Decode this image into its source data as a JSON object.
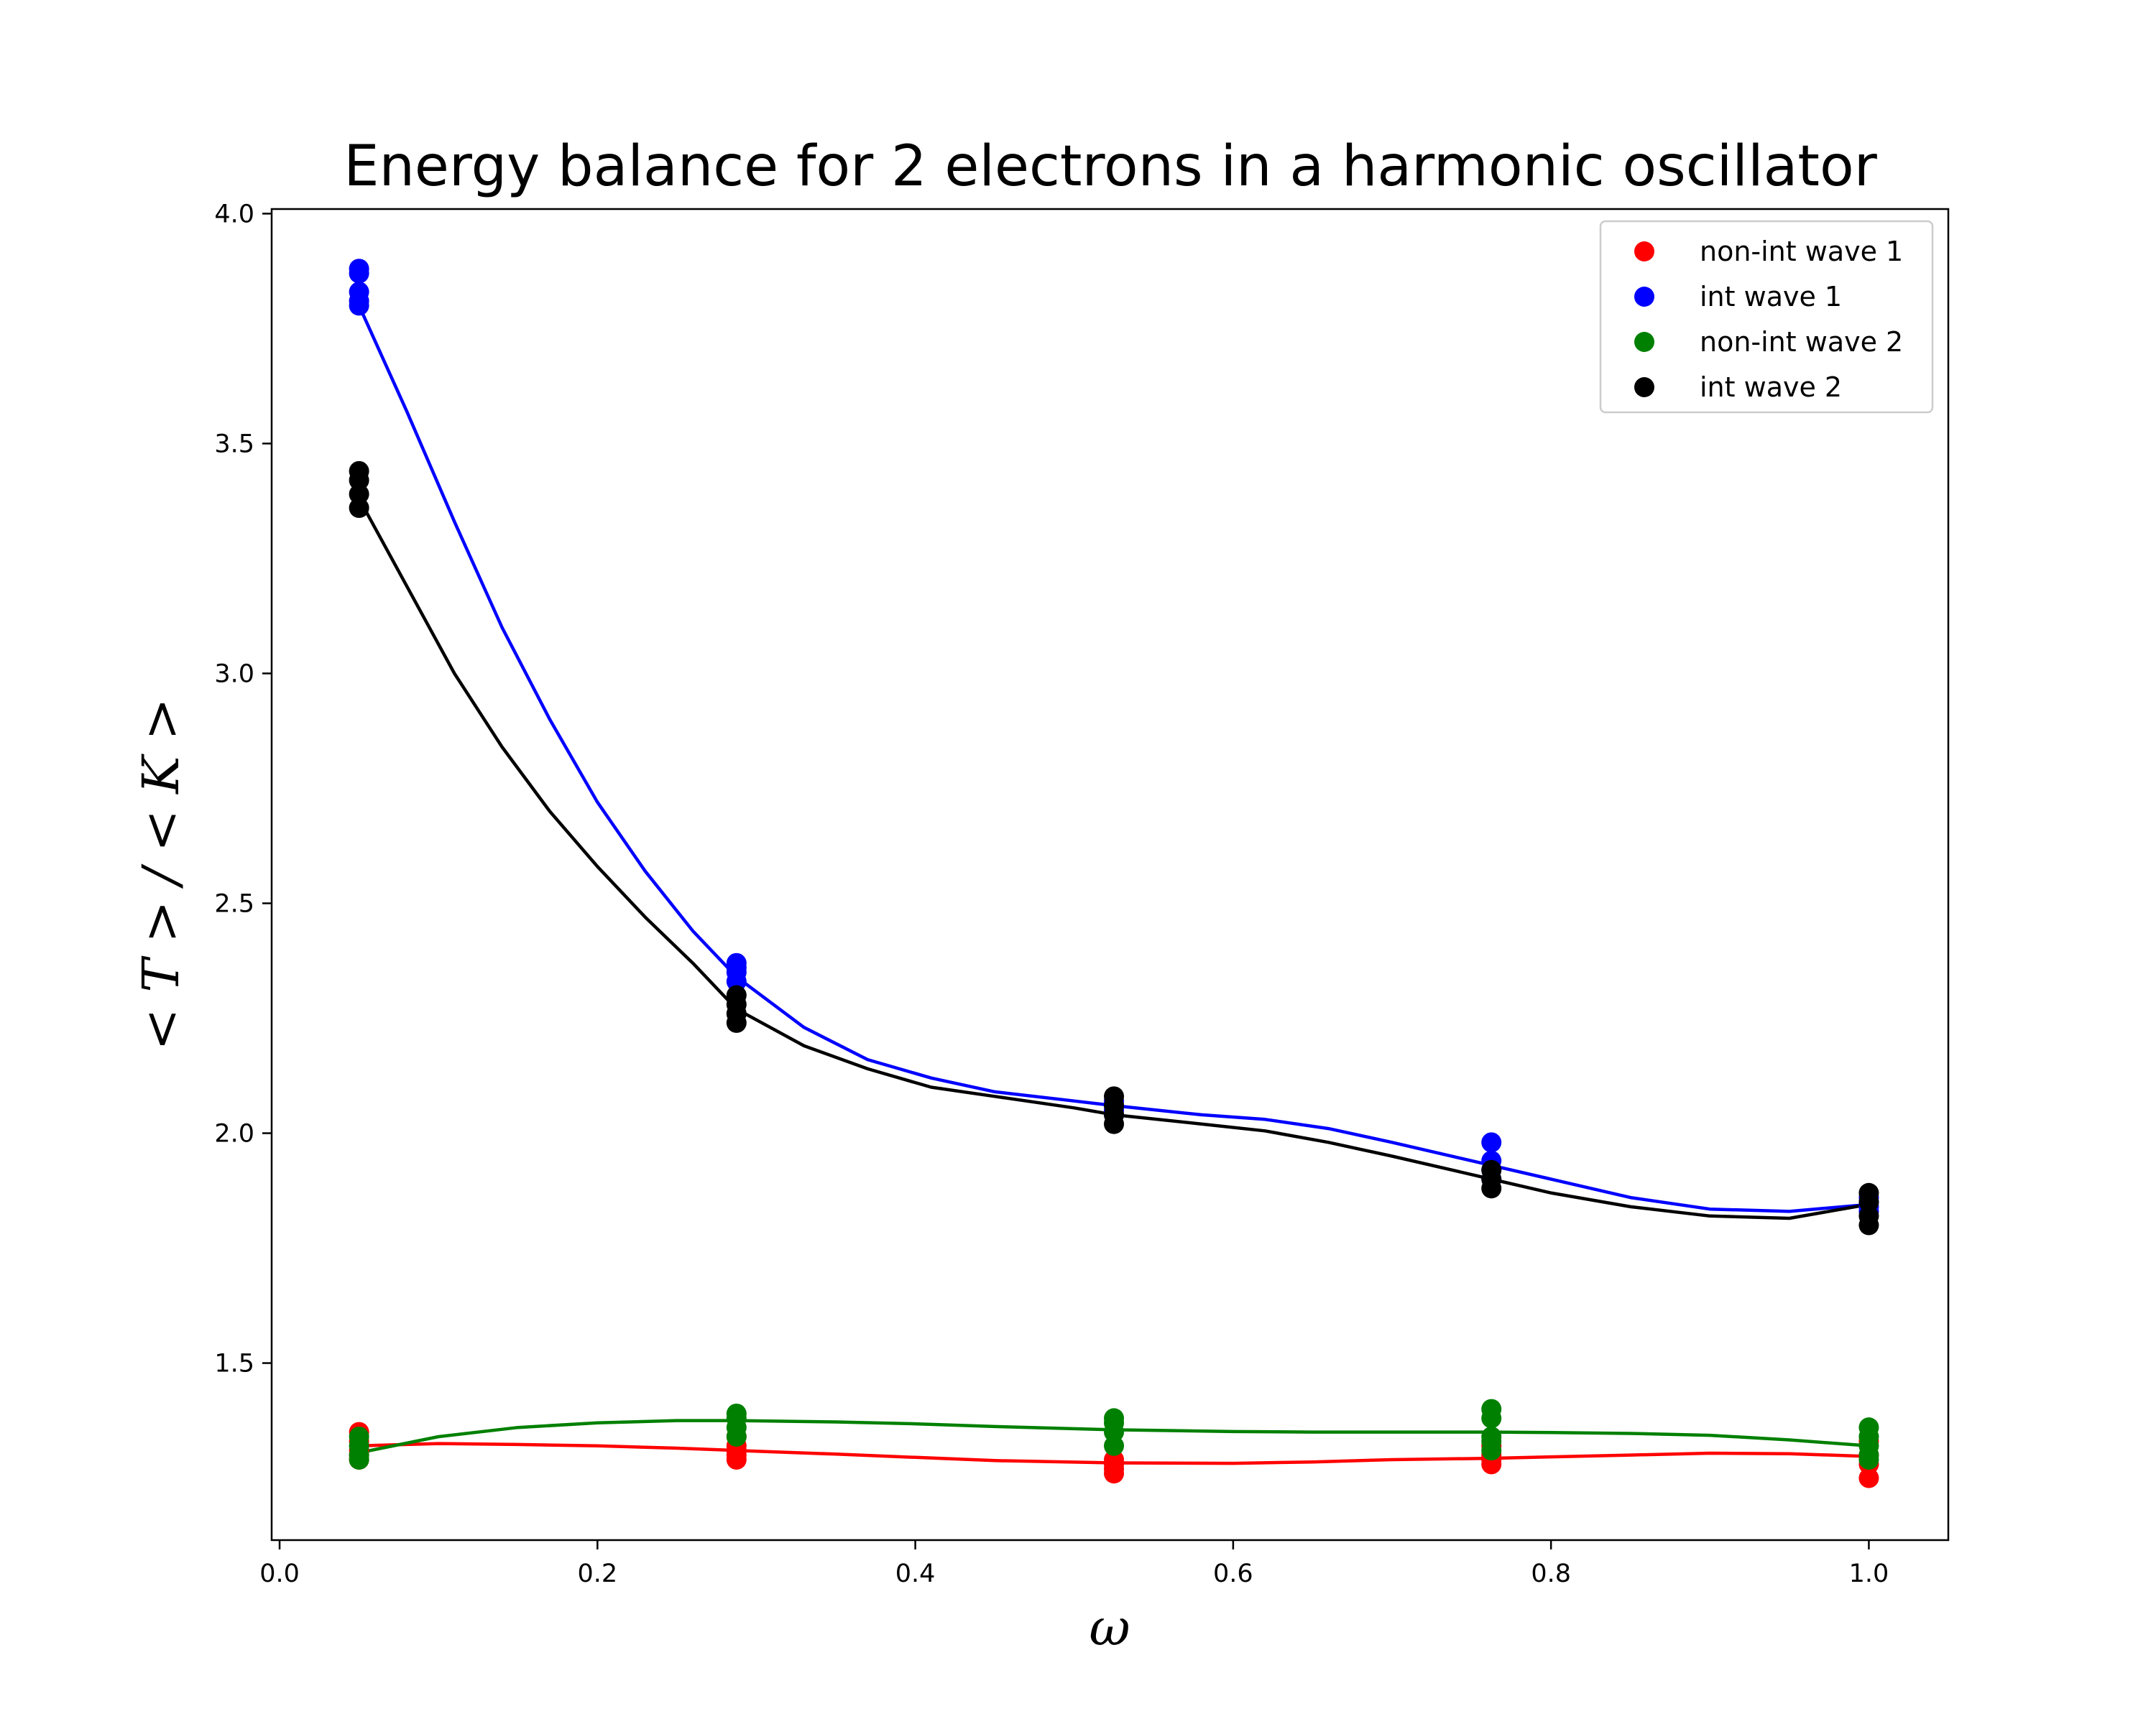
{
  "chart_data": {
    "type": "scatter",
    "title": "Energy balance for 2 electrons in a harmonic oscillator",
    "xlabel": "ω",
    "ylabel": "< T > / < K >",
    "xlim": [
      -0.005,
      1.05
    ],
    "ylim": [
      1.115,
      4.01
    ],
    "x_ticks": [
      0.0,
      0.2,
      0.4,
      0.6,
      0.8,
      1.0
    ],
    "x_tick_labels": [
      "0.0",
      "0.2",
      "0.4",
      "0.6",
      "0.8",
      "1.0"
    ],
    "y_ticks": [
      1.5,
      2.0,
      2.5,
      3.0,
      3.5,
      4.0
    ],
    "y_tick_labels": [
      "1.5",
      "2.0",
      "2.5",
      "3.0",
      "3.5",
      "4.0"
    ],
    "grid": false,
    "legend_position": "top-right",
    "x": [
      0.05,
      0.2875,
      0.525,
      0.7625,
      1.0
    ],
    "series": [
      {
        "name": "non-int wave 1",
        "color": "#ff0000",
        "points": [
          [
            0.05,
            1.35
          ],
          [
            0.05,
            1.33
          ],
          [
            0.05,
            1.31
          ],
          [
            0.05,
            1.3
          ],
          [
            0.05,
            1.29
          ],
          [
            0.2875,
            1.34
          ],
          [
            0.2875,
            1.32
          ],
          [
            0.2875,
            1.31
          ],
          [
            0.2875,
            1.3
          ],
          [
            0.2875,
            1.29
          ],
          [
            0.525,
            1.29
          ],
          [
            0.525,
            1.28
          ],
          [
            0.525,
            1.27
          ],
          [
            0.525,
            1.26
          ],
          [
            0.7625,
            1.32
          ],
          [
            0.7625,
            1.3
          ],
          [
            0.7625,
            1.29
          ],
          [
            0.7625,
            1.28
          ],
          [
            1.0,
            1.33
          ],
          [
            1.0,
            1.3
          ],
          [
            1.0,
            1.28
          ],
          [
            1.0,
            1.25
          ]
        ],
        "curve": [
          [
            0.05,
            1.32
          ],
          [
            0.1,
            1.325
          ],
          [
            0.15,
            1.323
          ],
          [
            0.2,
            1.32
          ],
          [
            0.25,
            1.315
          ],
          [
            0.2875,
            1.31
          ],
          [
            0.35,
            1.302
          ],
          [
            0.4,
            1.295
          ],
          [
            0.45,
            1.288
          ],
          [
            0.525,
            1.283
          ],
          [
            0.6,
            1.282
          ],
          [
            0.65,
            1.285
          ],
          [
            0.7,
            1.29
          ],
          [
            0.7625,
            1.293
          ],
          [
            0.8,
            1.296
          ],
          [
            0.85,
            1.3
          ],
          [
            0.9,
            1.304
          ],
          [
            0.95,
            1.303
          ],
          [
            1.0,
            1.297
          ]
        ]
      },
      {
        "name": "int wave 1",
        "color": "#0000ff",
        "points": [
          [
            0.05,
            3.88
          ],
          [
            0.05,
            3.87
          ],
          [
            0.05,
            3.83
          ],
          [
            0.05,
            3.81
          ],
          [
            0.05,
            3.8
          ],
          [
            0.2875,
            2.37
          ],
          [
            0.2875,
            2.36
          ],
          [
            0.2875,
            2.35
          ],
          [
            0.2875,
            2.33
          ],
          [
            0.525,
            2.07
          ],
          [
            0.525,
            2.06
          ],
          [
            0.525,
            2.05
          ],
          [
            0.525,
            2.04
          ],
          [
            0.7625,
            1.98
          ],
          [
            0.7625,
            1.94
          ],
          [
            0.7625,
            1.92
          ],
          [
            0.7625,
            1.9
          ],
          [
            1.0,
            1.86
          ],
          [
            1.0,
            1.85
          ],
          [
            1.0,
            1.84
          ],
          [
            1.0,
            1.83
          ]
        ],
        "curve": [
          [
            0.05,
            3.8
          ],
          [
            0.08,
            3.57
          ],
          [
            0.11,
            3.33
          ],
          [
            0.14,
            3.1
          ],
          [
            0.17,
            2.9
          ],
          [
            0.2,
            2.72
          ],
          [
            0.23,
            2.57
          ],
          [
            0.26,
            2.44
          ],
          [
            0.2875,
            2.34
          ],
          [
            0.33,
            2.23
          ],
          [
            0.37,
            2.16
          ],
          [
            0.41,
            2.12
          ],
          [
            0.45,
            2.09
          ],
          [
            0.5,
            2.07
          ],
          [
            0.525,
            2.06
          ],
          [
            0.58,
            2.04
          ],
          [
            0.62,
            2.03
          ],
          [
            0.66,
            2.01
          ],
          [
            0.7,
            1.98
          ],
          [
            0.7625,
            1.93
          ],
          [
            0.8,
            1.9
          ],
          [
            0.85,
            1.86
          ],
          [
            0.9,
            1.835
          ],
          [
            0.95,
            1.83
          ],
          [
            1.0,
            1.845
          ]
        ]
      },
      {
        "name": "non-int wave 2",
        "color": "#008000",
        "points": [
          [
            0.05,
            1.34
          ],
          [
            0.05,
            1.32
          ],
          [
            0.05,
            1.3
          ],
          [
            0.05,
            1.29
          ],
          [
            0.2875,
            1.39
          ],
          [
            0.2875,
            1.38
          ],
          [
            0.2875,
            1.36
          ],
          [
            0.2875,
            1.34
          ],
          [
            0.525,
            1.38
          ],
          [
            0.525,
            1.37
          ],
          [
            0.525,
            1.35
          ],
          [
            0.525,
            1.32
          ],
          [
            0.7625,
            1.4
          ],
          [
            0.7625,
            1.38
          ],
          [
            0.7625,
            1.34
          ],
          [
            0.7625,
            1.33
          ],
          [
            0.7625,
            1.31
          ],
          [
            1.0,
            1.36
          ],
          [
            1.0,
            1.34
          ],
          [
            1.0,
            1.32
          ],
          [
            1.0,
            1.3
          ],
          [
            1.0,
            1.29
          ]
        ],
        "curve": [
          [
            0.05,
            1.305
          ],
          [
            0.1,
            1.34
          ],
          [
            0.15,
            1.36
          ],
          [
            0.2,
            1.37
          ],
          [
            0.25,
            1.375
          ],
          [
            0.2875,
            1.375
          ],
          [
            0.35,
            1.372
          ],
          [
            0.4,
            1.368
          ],
          [
            0.45,
            1.362
          ],
          [
            0.525,
            1.355
          ],
          [
            0.6,
            1.351
          ],
          [
            0.65,
            1.35
          ],
          [
            0.7,
            1.35
          ],
          [
            0.7625,
            1.35
          ],
          [
            0.8,
            1.349
          ],
          [
            0.85,
            1.347
          ],
          [
            0.9,
            1.343
          ],
          [
            0.95,
            1.333
          ],
          [
            1.0,
            1.32
          ]
        ]
      },
      {
        "name": "int wave 2",
        "color": "#000000",
        "points": [
          [
            0.05,
            3.44
          ],
          [
            0.05,
            3.42
          ],
          [
            0.05,
            3.39
          ],
          [
            0.05,
            3.36
          ],
          [
            0.2875,
            2.3
          ],
          [
            0.2875,
            2.28
          ],
          [
            0.2875,
            2.26
          ],
          [
            0.2875,
            2.24
          ],
          [
            0.525,
            2.08
          ],
          [
            0.525,
            2.06
          ],
          [
            0.525,
            2.04
          ],
          [
            0.525,
            2.02
          ],
          [
            0.7625,
            1.92
          ],
          [
            0.7625,
            1.9
          ],
          [
            0.7625,
            1.88
          ],
          [
            1.0,
            1.87
          ],
          [
            1.0,
            1.85
          ],
          [
            1.0,
            1.82
          ],
          [
            1.0,
            1.8
          ]
        ],
        "curve": [
          [
            0.05,
            3.38
          ],
          [
            0.08,
            3.19
          ],
          [
            0.11,
            3.0
          ],
          [
            0.14,
            2.84
          ],
          [
            0.17,
            2.7
          ],
          [
            0.2,
            2.58
          ],
          [
            0.23,
            2.47
          ],
          [
            0.26,
            2.37
          ],
          [
            0.2875,
            2.27
          ],
          [
            0.33,
            2.19
          ],
          [
            0.37,
            2.14
          ],
          [
            0.41,
            2.1
          ],
          [
            0.45,
            2.08
          ],
          [
            0.5,
            2.055
          ],
          [
            0.525,
            2.04
          ],
          [
            0.58,
            2.02
          ],
          [
            0.62,
            2.005
          ],
          [
            0.66,
            1.98
          ],
          [
            0.7,
            1.95
          ],
          [
            0.7625,
            1.9
          ],
          [
            0.8,
            1.87
          ],
          [
            0.85,
            1.84
          ],
          [
            0.9,
            1.82
          ],
          [
            0.95,
            1.815
          ],
          [
            1.0,
            1.845
          ]
        ]
      }
    ]
  }
}
